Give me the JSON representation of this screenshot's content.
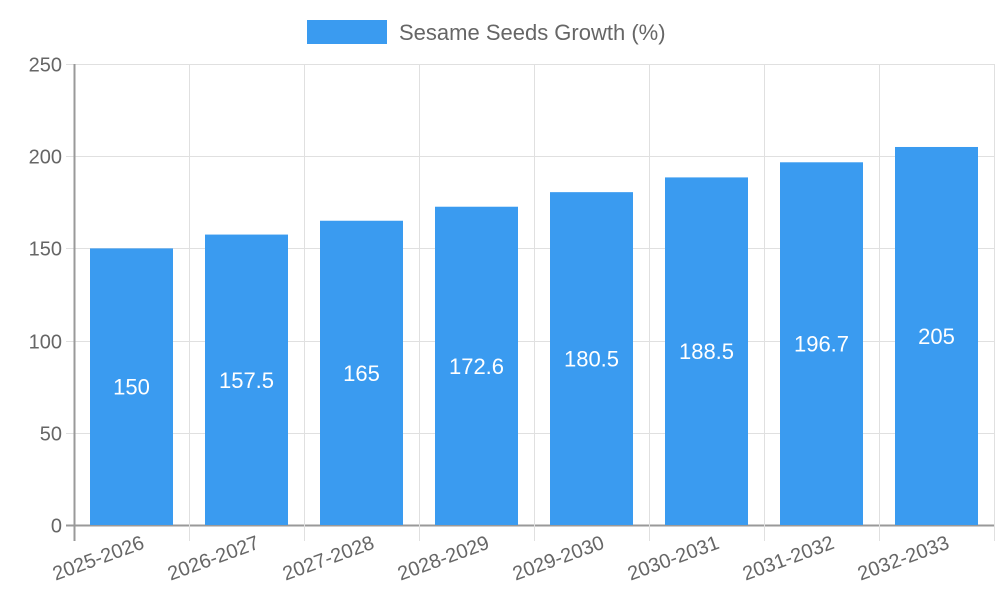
{
  "chart_data": {
    "type": "bar",
    "title": "",
    "xlabel": "",
    "ylabel": "",
    "categories": [
      "2025-2026",
      "2026-2027",
      "2027-2028",
      "2028-2029",
      "2029-2030",
      "2030-2031",
      "2031-2032",
      "2032-2033"
    ],
    "series": [
      {
        "name": "Sesame Seeds Growth (%)",
        "values": [
          150,
          157.5,
          165,
          172.6,
          180.5,
          188.5,
          196.7,
          205
        ],
        "color": "#3a9bf0"
      }
    ],
    "ylim": [
      0,
      250
    ],
    "yticks": [
      0,
      50,
      100,
      150,
      200,
      250
    ],
    "grid": true,
    "legend_position": "top",
    "data_labels": true
  },
  "legend": {
    "label": "Sesame Seeds Growth (%)",
    "color": "#3a9bf0"
  },
  "colors": {
    "bar": "#3a9bf0",
    "grid": "#e0e0e0",
    "axis": "#999999",
    "text": "#666666"
  }
}
